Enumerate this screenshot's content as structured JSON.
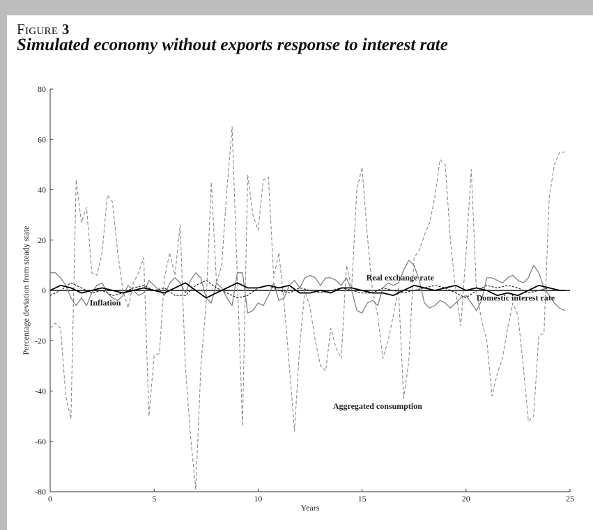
{
  "figure": {
    "label_prefix": "Figure",
    "label_number": "3",
    "title": "Simulated economy without exports response to interest rate"
  },
  "chart_data": {
    "type": "line",
    "title": "Simulated economy without exports response to interest rate",
    "xlabel": "Years",
    "ylabel": "Percentage deviation from steady state",
    "xlim": [
      0,
      25
    ],
    "ylim": [
      -80,
      80
    ],
    "xticks": [
      0,
      5,
      10,
      15,
      20,
      25
    ],
    "yticks": [
      -80,
      -60,
      -40,
      -20,
      0,
      20,
      40,
      60,
      80
    ],
    "grid": false,
    "legend": "none",
    "annotations": [
      {
        "text": "Real exchange rate",
        "x": 15.2,
        "y": 4
      },
      {
        "text": "Domestic interest rate",
        "x": 20.5,
        "y": -4
      },
      {
        "text": "Inflation",
        "x": 1.9,
        "y": -6
      },
      {
        "text": "Aggregated consumption",
        "x": 13.6,
        "y": -47
      }
    ],
    "series": [
      {
        "name": "Aggregated consumption",
        "color": "#8a8a8a",
        "dash": "5,3",
        "width": 1.1,
        "x": [
          0,
          0.25,
          0.5,
          0.75,
          1.0,
          1.25,
          1.5,
          1.75,
          2.0,
          2.25,
          2.5,
          2.75,
          3.0,
          3.25,
          3.5,
          3.75,
          4.0,
          4.25,
          4.5,
          4.75,
          5.0,
          5.25,
          5.5,
          5.75,
          6.0,
          6.25,
          6.5,
          6.75,
          7.0,
          7.25,
          7.5,
          7.75,
          8.0,
          8.25,
          8.5,
          8.75,
          9.0,
          9.25,
          9.5,
          9.75,
          10.0,
          10.25,
          10.5,
          10.75,
          11.0,
          11.25,
          11.5,
          11.75,
          12.0,
          12.25,
          12.5,
          12.75,
          13.0,
          13.25,
          13.5,
          13.75,
          14.0,
          14.25,
          14.5,
          14.75,
          15.0,
          15.25,
          15.5,
          15.75,
          16.0,
          16.25,
          16.5,
          16.75,
          17.0,
          17.25,
          17.5,
          17.75,
          18.0,
          18.25,
          18.5,
          18.75,
          19.0,
          19.25,
          19.5,
          19.75,
          20.0,
          20.25,
          20.5,
          20.75,
          21.0,
          21.25,
          21.5,
          21.75,
          22.0,
          22.25,
          22.5,
          22.75,
          23.0,
          23.25,
          23.5,
          23.75,
          24.0,
          24.25,
          24.5,
          24.75
        ],
        "values": [
          -15,
          -13,
          -15,
          -42,
          -51,
          44,
          27,
          33,
          7,
          6,
          15,
          38,
          35,
          15,
          0,
          -7,
          3,
          7,
          13,
          -50,
          -26,
          -25,
          5,
          15,
          6,
          26,
          -30,
          -58,
          -79,
          -30,
          -5,
          43,
          3,
          10,
          40,
          65,
          5,
          -54,
          46,
          30,
          24,
          44,
          45,
          5,
          15,
          -5,
          -30,
          -56,
          -22,
          0,
          -7,
          -20,
          -30,
          -32,
          -15,
          -23,
          -27,
          10,
          1,
          40,
          49,
          22,
          0,
          -10,
          -27,
          -20,
          -10,
          1,
          -43,
          -28,
          13,
          16,
          22,
          27,
          37,
          52,
          50,
          20,
          0,
          -14,
          15,
          48,
          0,
          -12,
          -20,
          -42,
          -33,
          -27,
          -15,
          -5,
          -10,
          -30,
          -52,
          -50,
          -18,
          -17,
          37,
          50,
          55,
          55
        ]
      },
      {
        "name": "Real exchange rate",
        "color": "#808080",
        "dash": "",
        "width": 1.3,
        "x": [
          0,
          0.25,
          0.5,
          0.75,
          1.0,
          1.25,
          1.5,
          1.75,
          2.0,
          2.25,
          2.5,
          2.75,
          3.0,
          3.25,
          3.5,
          3.75,
          4.0,
          4.25,
          4.5,
          4.75,
          5.0,
          5.25,
          5.5,
          5.75,
          6.0,
          6.25,
          6.5,
          6.75,
          7.0,
          7.25,
          7.5,
          7.75,
          8.0,
          8.25,
          8.5,
          8.75,
          9.0,
          9.25,
          9.5,
          9.75,
          10.0,
          10.25,
          10.5,
          10.75,
          11.0,
          11.25,
          11.5,
          11.75,
          12.0,
          12.25,
          12.5,
          12.75,
          13.0,
          13.25,
          13.5,
          13.75,
          14.0,
          14.25,
          14.5,
          14.75,
          15.0,
          15.25,
          15.5,
          15.75,
          16.0,
          16.25,
          16.5,
          16.75,
          17.0,
          17.25,
          17.5,
          17.75,
          18.0,
          18.25,
          18.5,
          18.75,
          19.0,
          19.25,
          19.5,
          19.75,
          20.0,
          20.25,
          20.5,
          20.75,
          21.0,
          21.25,
          21.5,
          21.75,
          22.0,
          22.25,
          22.5,
          22.75,
          23.0,
          23.25,
          23.5,
          23.75,
          24.0,
          24.25,
          24.5,
          24.75
        ],
        "values": [
          7,
          7,
          5,
          2,
          -3,
          -6,
          -3,
          -6,
          -1,
          2,
          3,
          -1,
          -3,
          -4,
          -2,
          2,
          0,
          -2,
          -1,
          4,
          2,
          0,
          -2,
          3,
          5,
          3,
          -1,
          4,
          7,
          5,
          -3,
          -5,
          3,
          1,
          -3,
          -6,
          7,
          7,
          -9,
          -8,
          -5,
          -6,
          -2,
          3,
          -4,
          -3,
          2,
          4,
          1,
          5,
          6,
          5,
          2,
          5,
          5,
          4,
          2,
          5,
          0,
          -8,
          -9,
          -5,
          -4,
          -6,
          1,
          3,
          2,
          3,
          8,
          12,
          10,
          4,
          -5,
          -7,
          -6,
          -4,
          -5,
          -7,
          -5,
          -3,
          -2,
          -5,
          -8,
          -4,
          5,
          5,
          4,
          3,
          5,
          6,
          4,
          3,
          5,
          10,
          7,
          1,
          -2,
          -5,
          -7,
          -8
        ]
      },
      {
        "name": "Inflation",
        "color": "#222222",
        "dash": "3,2",
        "width": 1.2,
        "x": [
          0,
          0.5,
          1.0,
          1.5,
          2.0,
          2.5,
          3.0,
          3.5,
          4.0,
          4.5,
          5.0,
          5.5,
          6.0,
          6.5,
          7.0,
          7.5,
          8.0,
          8.5,
          9.0,
          9.5,
          10.0,
          10.5,
          11.0,
          11.5,
          12.0,
          12.5,
          13.0,
          13.5,
          14.0,
          14.5,
          15.0,
          15.5,
          16.0,
          16.5,
          17.0,
          17.5,
          18.0,
          18.5,
          19.0,
          19.5,
          20.0,
          20.5,
          21.0,
          21.5,
          22.0,
          22.5,
          23.0,
          23.5,
          24.0,
          24.5,
          24.75
        ],
        "values": [
          -2,
          0,
          3,
          1,
          -1,
          0,
          -2,
          -1,
          1,
          2,
          0,
          1,
          -2,
          -2,
          2,
          4,
          1,
          -1,
          -3,
          -2,
          1,
          2,
          0,
          -1,
          1,
          0,
          -1,
          0,
          1,
          0,
          -1,
          -1,
          1,
          0,
          -1,
          0,
          1,
          2,
          1,
          -1,
          -3,
          0,
          2,
          1,
          2,
          1,
          -1,
          0,
          1,
          0,
          0
        ]
      },
      {
        "name": "Domestic interest rate",
        "color": "#000000",
        "dash": "",
        "width": 1.8,
        "x": [
          0,
          0.5,
          1.0,
          1.5,
          2.0,
          2.5,
          3.0,
          3.5,
          4.0,
          4.5,
          5.0,
          5.5,
          6.0,
          6.5,
          7.0,
          7.5,
          8.0,
          8.5,
          9.0,
          9.5,
          10.0,
          10.5,
          11.0,
          11.5,
          12.0,
          12.5,
          13.0,
          13.5,
          14.0,
          14.5,
          15.0,
          15.5,
          16.0,
          16.5,
          17.0,
          17.5,
          18.0,
          18.5,
          19.0,
          19.5,
          20.0,
          20.5,
          21.0,
          21.5,
          22.0,
          22.5,
          23.0,
          23.5,
          24.0,
          24.5,
          24.75
        ],
        "values": [
          0,
          2,
          1,
          -1,
          0,
          1,
          0,
          -1,
          0,
          1,
          0,
          -1,
          1,
          3,
          0,
          -3,
          -1,
          1,
          3,
          1,
          1,
          2,
          1,
          2,
          -1,
          -1,
          0,
          -1,
          1,
          1,
          0,
          -1,
          -1,
          -2,
          0,
          2,
          1,
          0,
          1,
          2,
          0,
          1,
          0,
          -2,
          -1,
          -2,
          0,
          2,
          1,
          0,
          0
        ]
      }
    ]
  }
}
